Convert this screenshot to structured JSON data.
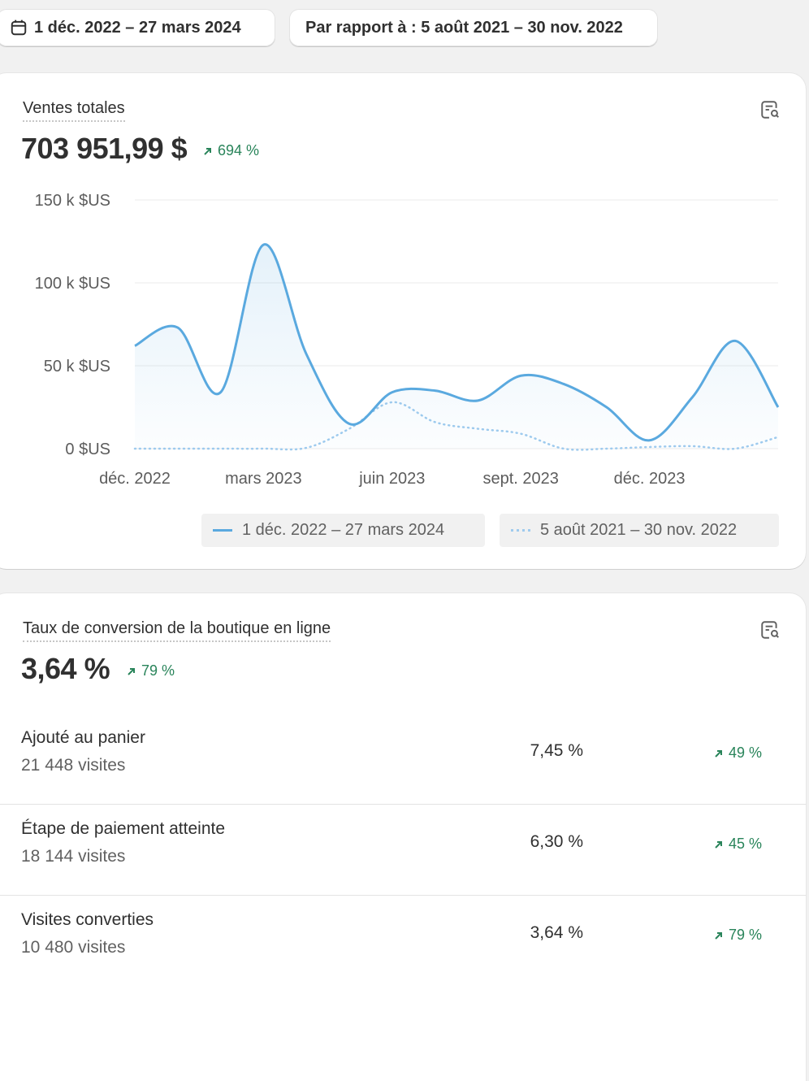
{
  "filters": {
    "date_range": "1 déc. 2022 – 27 mars 2024",
    "compare": "Par rapport à : 5 août 2021 – 30 nov. 2022"
  },
  "sales": {
    "title": "Ventes totales",
    "value": "703 951,99 $",
    "change": "694 %",
    "legend_current": "1 déc. 2022 – 27 mars 2024",
    "legend_compare": "5 août 2021 – 30 nov. 2022"
  },
  "colors": {
    "current_series": "#5aa9df",
    "compare_series": "#9fcbee",
    "positive": "#29845a"
  },
  "chart_data": {
    "type": "line",
    "title": "",
    "ylim": [
      0,
      150000
    ],
    "y_ticks": [
      "0 $US",
      "50 k $US",
      "100 k $US",
      "150 k $US"
    ],
    "x_tick_labels": [
      "déc. 2022",
      "mars 2023",
      "juin 2023",
      "sept. 2023",
      "déc. 2023"
    ],
    "x": [
      "déc. 2022",
      "janv. 2023",
      "févr. 2023",
      "mars 2023",
      "avr. 2023",
      "mai 2023",
      "juin 2023",
      "juil. 2023",
      "août 2023",
      "sept. 2023",
      "oct. 2023",
      "nov. 2023",
      "déc. 2023",
      "janv. 2024",
      "févr. 2024",
      "mars 2024"
    ],
    "grid": true,
    "legend": "bottom-right",
    "series": [
      {
        "name": "1 déc. 2022 – 27 mars 2024",
        "style": "solid",
        "values": [
          62000,
          73000,
          34000,
          123000,
          57000,
          15000,
          34000,
          35000,
          29000,
          44000,
          39000,
          25000,
          5000,
          31000,
          65000,
          25000
        ]
      },
      {
        "name": "5 août 2021 – 30 nov. 2022",
        "style": "dotted",
        "values": [
          0,
          0,
          0,
          0,
          500,
          12000,
          28000,
          16000,
          12000,
          9000,
          0,
          0,
          1000,
          1500,
          0,
          7000
        ]
      }
    ]
  },
  "conversion": {
    "title": "Taux de conversion de la boutique en ligne",
    "value": "3,64 %",
    "change": "79 %",
    "rows": [
      {
        "label": "Ajouté au panier",
        "visits": "21 448 visites",
        "rate": "7,45 %",
        "change": "49 %"
      },
      {
        "label": "Étape de paiement atteinte",
        "visits": "18 144 visites",
        "rate": "6,30 %",
        "change": "45 %"
      },
      {
        "label": "Visites converties",
        "visits": "10 480 visites",
        "rate": "3,64 %",
        "change": "79 %"
      }
    ]
  }
}
